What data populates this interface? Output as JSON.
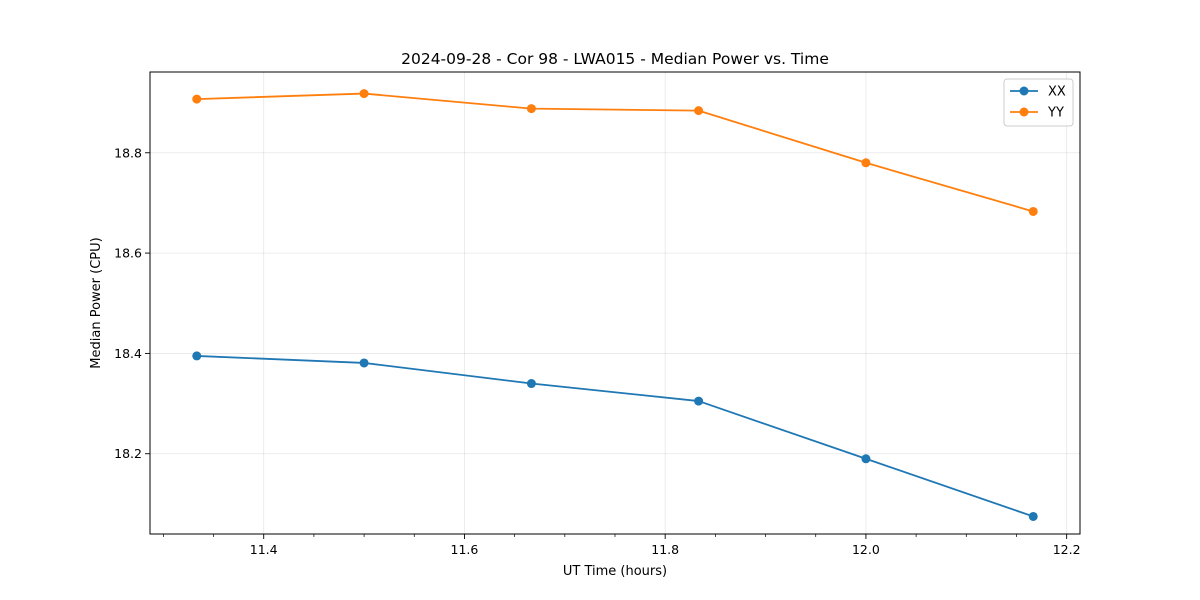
{
  "chart_data": {
    "type": "line",
    "title": "2024-09-28 - Cor 98 - LWA015 - Median Power vs. Time",
    "xlabel": "UT Time (hours)",
    "ylabel": "Median Power (CPU)",
    "xlim": [
      11.2867,
      12.2133
    ],
    "ylim": [
      18.04,
      18.961
    ],
    "xticks": [
      11.4,
      11.6,
      11.8,
      12.0,
      12.2
    ],
    "xtick_labels": [
      "11.4",
      "11.6",
      "11.8",
      "12.0",
      "12.2"
    ],
    "x_minor_step": 0.05,
    "yticks": [
      18.2,
      18.4,
      18.6,
      18.8
    ],
    "ytick_labels": [
      "18.2",
      "18.4",
      "18.6",
      "18.8"
    ],
    "grid": true,
    "legend_position": "top-right",
    "x": [
      11.3333,
      11.5,
      11.6667,
      11.8333,
      12.0,
      12.1667
    ],
    "series": [
      {
        "name": "XX",
        "color": "#1f77b4",
        "values": [
          18.395,
          18.381,
          18.34,
          18.305,
          18.19,
          18.075
        ]
      },
      {
        "name": "YY",
        "color": "#ff7f0e",
        "values": [
          18.907,
          18.918,
          18.888,
          18.884,
          18.78,
          18.683
        ]
      }
    ]
  }
}
